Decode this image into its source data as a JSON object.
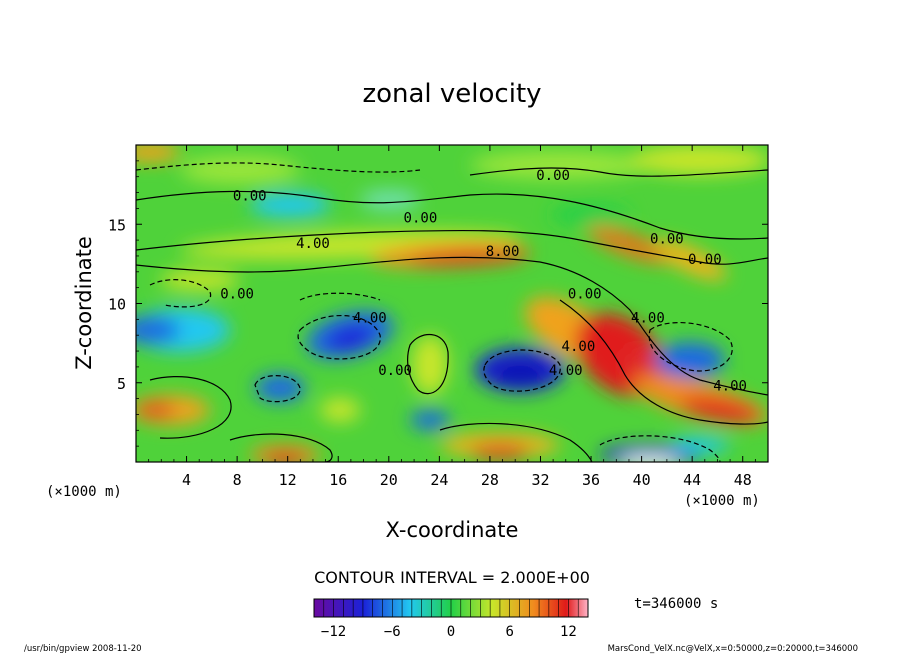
{
  "chart_data": {
    "type": "heatmap",
    "title": "zonal velocity",
    "xlabel": "X-coordinate",
    "ylabel": "Z-coordinate",
    "x_unit": "(×1000 m)",
    "y_unit": "(×1000 m)",
    "x_ticks": [
      4,
      8,
      12,
      16,
      20,
      24,
      28,
      32,
      36,
      40,
      44,
      48
    ],
    "y_ticks": [
      5,
      10,
      15
    ],
    "xlim": [
      0,
      50
    ],
    "ylim": [
      0,
      20
    ],
    "contour_interval_text": "CONTOUR INTERVAL = 2.000E+00",
    "contour_labels": [
      {
        "text": "0.00",
        "x": 9,
        "z": 16.5
      },
      {
        "text": "0.00",
        "x": 33,
        "z": 17.8
      },
      {
        "text": "0.00",
        "x": 22.5,
        "z": 15.1
      },
      {
        "text": "4.00",
        "x": 14,
        "z": 13.5
      },
      {
        "text": "8.00",
        "x": 29,
        "z": 13.0
      },
      {
        "text": "0.00",
        "x": 42,
        "z": 13.8
      },
      {
        "text": "0.00",
        "x": 45,
        "z": 12.5
      },
      {
        "text": "0.00",
        "x": 8,
        "z": 10.3
      },
      {
        "text": "4.00",
        "x": 18.5,
        "z": 8.8
      },
      {
        "text": "0.00",
        "x": 35.5,
        "z": 10.3
      },
      {
        "text": "4.00",
        "x": 40.5,
        "z": 8.8
      },
      {
        "text": "0.00",
        "x": 20.5,
        "z": 5.5
      },
      {
        "text": "4.00",
        "x": 35,
        "z": 7.0
      },
      {
        "text": "4.00",
        "x": 34,
        "z": 5.5
      },
      {
        "text": "4.00",
        "x": 47,
        "z": 4.5
      }
    ],
    "colorbar": {
      "range": [
        -14,
        14
      ],
      "tick_labels": [
        "−12",
        "−6",
        "0",
        "6",
        "12"
      ],
      "tick_values": [
        -12,
        -6,
        0,
        6,
        12
      ]
    },
    "time_label": "t=346000 s",
    "footer_left": "/usr/bin/gpview  2008-11-20",
    "footer_right": "MarsCond_VelX.nc@VelX,x=0:50000,z=0:20000,t=346000"
  }
}
